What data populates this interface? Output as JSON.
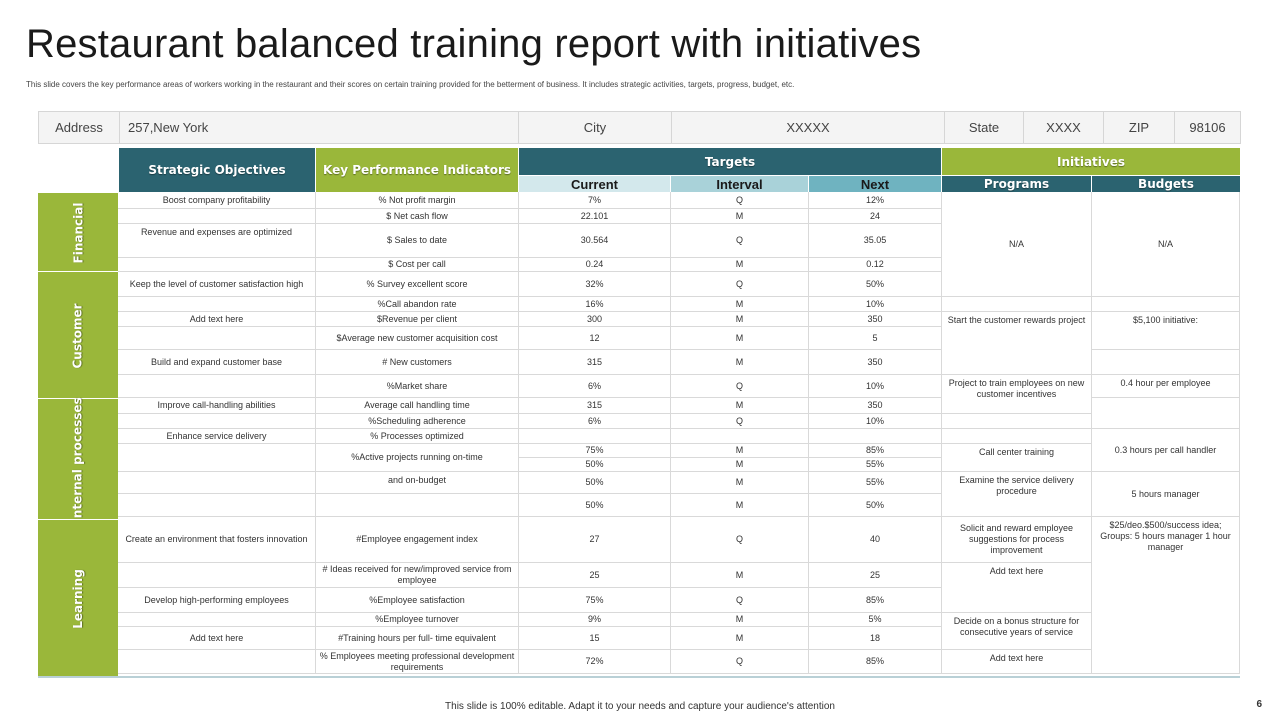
{
  "title": "Restaurant balanced training report with initiatives",
  "subtitle": "This slide covers the key performance areas of workers working in the restaurant and their scores on certain training provided for the betterment of business. It includes strategic activities, targets, progress, budget, etc.",
  "address_bar": {
    "address_label": "Address",
    "address_value": "257,New York",
    "city_label": "City",
    "city_value": "XXXXX",
    "state_label": "State",
    "state_value": "XXXX",
    "zip_label": "ZIP",
    "zip_value": "98106"
  },
  "headers": {
    "strategic_objectives": "Strategic Objectives",
    "kpi": "Key Performance Indicators",
    "targets": "Targets",
    "current": "Current",
    "interval": "Interval",
    "next": "Next",
    "initiatives": "Initiatives",
    "programs": "Programs",
    "budgets": "Budgets"
  },
  "categories": [
    "Financial",
    "Customer",
    "Internal processes",
    "Learning"
  ],
  "objectives": [
    "Boost company profitability",
    "Revenue and expenses are optimized",
    "Keep the level of customer satisfaction high",
    "Add text here",
    "Build and expand customer base",
    "Improve call-handling abilities",
    "Enhance service delivery",
    "Create an environment that fosters innovation",
    "Develop high-performing employees",
    "Add text here"
  ],
  "rows": [
    {
      "kpi": "% Not profit margin",
      "current": "7%",
      "interval": "Q",
      "next": "12%"
    },
    {
      "kpi": "$ Net cash flow",
      "current": "22.101",
      "interval": "M",
      "next": "24"
    },
    {
      "kpi": "$ Sales to date",
      "current": "30.564",
      "interval": "Q",
      "next": "35.05"
    },
    {
      "kpi": "$ Cost per call",
      "current": "0.24",
      "interval": "M",
      "next": "0.12"
    },
    {
      "kpi": "% Survey excellent score",
      "current": "32%",
      "interval": "Q",
      "next": "50%"
    },
    {
      "kpi": "%Call abandon rate",
      "current": "16%",
      "interval": "M",
      "next": "10%"
    },
    {
      "kpi": "$Revenue per client",
      "current": "300",
      "interval": "M",
      "next": "350"
    },
    {
      "kpi": "$Average new customer acquisition cost",
      "current": "12",
      "interval": "M",
      "next": "5"
    },
    {
      "kpi": "# New customers",
      "current": "315",
      "interval": "M",
      "next": "350"
    },
    {
      "kpi": "%Market share",
      "current": "6%",
      "interval": "Q",
      "next": "10%"
    },
    {
      "kpi": "Average call handling time",
      "current": "315",
      "interval": "M",
      "next": "350"
    },
    {
      "kpi": "%Scheduling adherence",
      "current": "6%",
      "interval": "Q",
      "next": "10%"
    },
    {
      "kpi": "% Processes optimized",
      "current": "",
      "interval": "",
      "next": ""
    },
    {
      "kpi": "%Active projects running on-time",
      "current": "75%",
      "interval": "M",
      "next": "85%"
    },
    {
      "kpi": "",
      "current": "50%",
      "interval": "M",
      "next": "55%"
    },
    {
      "kpi": "and on-budget",
      "current": "50%",
      "interval": "M",
      "next": "55%"
    },
    {
      "kpi": "",
      "current": "50%",
      "interval": "M",
      "next": "50%"
    },
    {
      "kpi": "#Employee engagement index",
      "current": "27",
      "interval": "Q",
      "next": "40"
    },
    {
      "kpi": "# Ideas received for new/improved service from employee",
      "current": "25",
      "interval": "M",
      "next": "25"
    },
    {
      "kpi": "%Employee satisfaction",
      "current": "75%",
      "interval": "Q",
      "next": "85%"
    },
    {
      "kpi": "%Employee turnover",
      "current": "9%",
      "interval": "M",
      "next": "5%"
    },
    {
      "kpi": "#Training hours per full- time equivalent",
      "current": "15",
      "interval": "M",
      "next": "18"
    },
    {
      "kpi": "% Employees meeting professional development requirements",
      "current": "72%",
      "interval": "Q",
      "next": "85%"
    }
  ],
  "programs": [
    "N/A",
    "",
    "Start the customer rewards project",
    "Project to train employees on new customer incentives",
    "",
    "Call center training",
    "Examine the service delivery procedure",
    "Solicit and reward employee suggestions for process improvement",
    "Add text here",
    "Decide on a bonus structure for consecutive years of service",
    "Add text here"
  ],
  "budgets": [
    "N/A",
    "",
    "$5,100 initiative:",
    "",
    "0.4 hour per employee",
    "",
    "0.3 hours per call handler",
    "5 hours manager",
    "$25/deo.$500/success idea; Groups: 5 hours manager 1 hour manager"
  ],
  "footer": "This slide is 100% editable. Adapt it to your needs and capture your audience's attention",
  "page_number": "6",
  "colors": {
    "teal": "#2b6370",
    "green": "#9ab73a",
    "light_teal": "#d3e8ec",
    "mid_teal": "#a9d2d9"
  }
}
